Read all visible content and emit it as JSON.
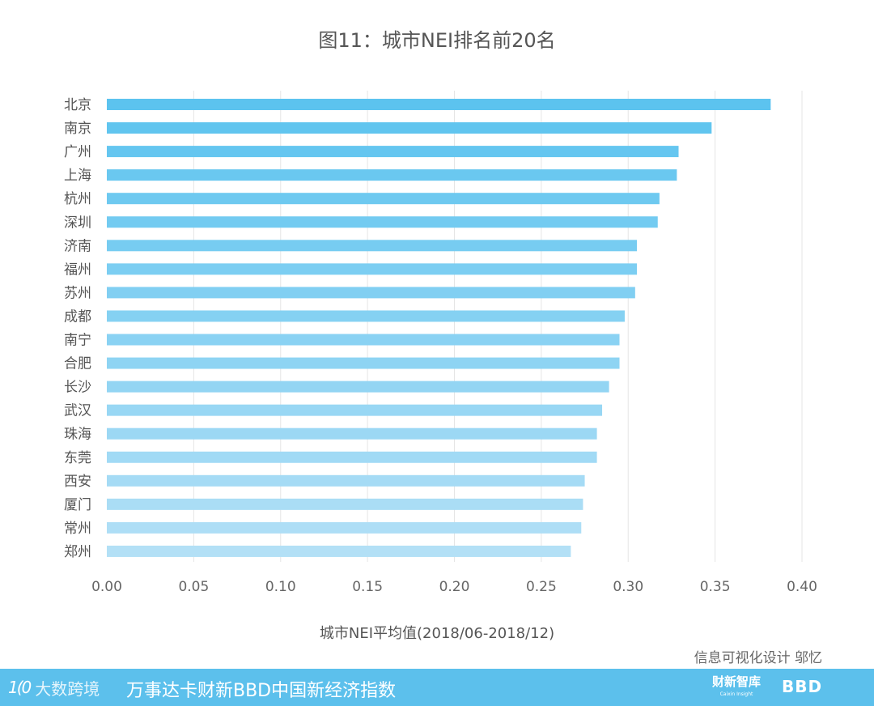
{
  "chart_data": {
    "type": "bar",
    "orientation": "horizontal",
    "title": "图11：城市NEI排名前20名",
    "xlabel": "城市NEI平均值(2018/06-2018/12)",
    "ylabel": "",
    "categories": [
      "北京",
      "南京",
      "广州",
      "上海",
      "杭州",
      "深圳",
      "济南",
      "福州",
      "苏州",
      "成都",
      "南宁",
      "合肥",
      "长沙",
      "武汉",
      "珠海",
      "东莞",
      "西安",
      "厦门",
      "常州",
      "郑州"
    ],
    "values": [
      0.382,
      0.348,
      0.329,
      0.328,
      0.318,
      0.317,
      0.305,
      0.305,
      0.304,
      0.298,
      0.295,
      0.295,
      0.289,
      0.285,
      0.282,
      0.282,
      0.275,
      0.274,
      0.273,
      0.267
    ],
    "xlim": [
      0,
      0.4
    ],
    "xticks": [
      "0.00",
      "0.05",
      "0.10",
      "0.15",
      "0.20",
      "0.25",
      "0.30",
      "0.35",
      "0.40"
    ],
    "grid": true,
    "bar_color_top": "#5cc3ef",
    "bar_color_bottom": "#b3e0f6",
    "grid_color": "#e5e5e5"
  },
  "credit": "信息可视化设计 邬忆",
  "footer": {
    "brand_mark": "1(0",
    "brand_name": "大数跨境",
    "index_name": "万事达卡财新BBD中国新经济指数",
    "caixin_logo": "财新智库",
    "caixin_logo_sub": "Caixin Insight",
    "bbd_logo": "BBD",
    "bg_color": "#5cc0ec"
  }
}
